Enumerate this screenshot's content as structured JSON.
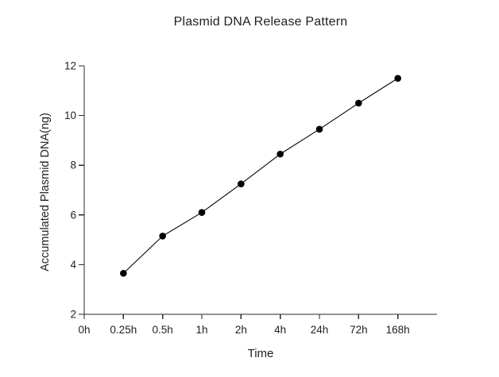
{
  "window": {
    "background": "#ffffff"
  },
  "colors": {
    "background": "#ffffff",
    "text": "#1f1f1f",
    "axis": "#2a2a2a",
    "series_line": "#000000",
    "marker_fill": "#000000"
  },
  "chart_data": {
    "type": "line",
    "title": "Plasmid DNA Release Pattern",
    "xlabel": "Time",
    "ylabel": "Accumulated Plasmid DNA(ng)",
    "categories": [
      "0h",
      "0.25h",
      "0.5h",
      "1h",
      "2h",
      "4h",
      "24h",
      "72h",
      "168h"
    ],
    "yticks": [
      2,
      4,
      6,
      8,
      10,
      12
    ],
    "ylim": [
      2,
      12
    ],
    "grid": false,
    "legend_position": "none",
    "marker": "filled-circle",
    "series": [
      {
        "name": "Accumulated Plasmid DNA (ng)",
        "x": [
          "0.25h",
          "0.5h",
          "1h",
          "2h",
          "4h",
          "24h",
          "72h",
          "168h"
        ],
        "values": [
          3.65,
          5.15,
          6.1,
          7.25,
          8.45,
          9.45,
          10.5,
          11.5
        ]
      }
    ]
  }
}
